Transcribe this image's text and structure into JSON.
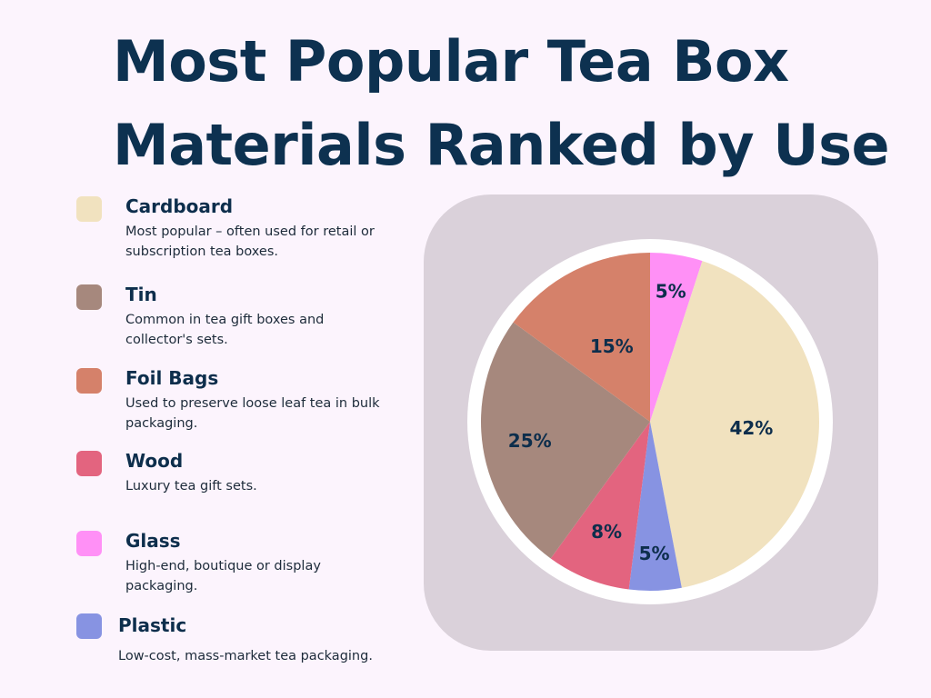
{
  "title": "Most Popular Tea Box Materials Ranked by Use",
  "legend": [
    {
      "name": "Cardboard",
      "description": "Most popular – often used for retail or subscription tea boxes.",
      "color": "#f1e2bf"
    },
    {
      "name": "Tin",
      "description": "Common in tea gift boxes and collector's sets.",
      "color": "#a6887d"
    },
    {
      "name": "Foil Bags",
      "description": "Used to preserve loose leaf tea in bulk packaging.",
      "color": "#d5816a"
    },
    {
      "name": "Wood",
      "description": "Luxury tea gift sets.",
      "color": "#e3647f"
    },
    {
      "name": "Glass",
      "description": "High-end, boutique or display packaging.",
      "color": "#ff90f6"
    },
    {
      "name": "Plastic",
      "description": "Low-cost, mass-market tea packaging.",
      "color": "#8793e2"
    }
  ],
  "chart_data": {
    "type": "pie",
    "title": "Most Popular Tea Box Materials Ranked by Use",
    "legend_position": "left",
    "slices": [
      {
        "label": "Glass",
        "value": 5,
        "display": "5%",
        "color": "#ff90f6"
      },
      {
        "label": "Cardboard",
        "value": 42,
        "display": "42%",
        "color": "#f1e2bf"
      },
      {
        "label": "Plastic",
        "value": 5,
        "display": "5%",
        "color": "#8793e2"
      },
      {
        "label": "Wood",
        "value": 8,
        "display": "8%",
        "color": "#e3647f"
      },
      {
        "label": "Tin",
        "value": 25,
        "display": "25%",
        "color": "#a6887d"
      },
      {
        "label": "Foil Bags",
        "value": 15,
        "display": "15%",
        "color": "#d5816a"
      }
    ]
  }
}
